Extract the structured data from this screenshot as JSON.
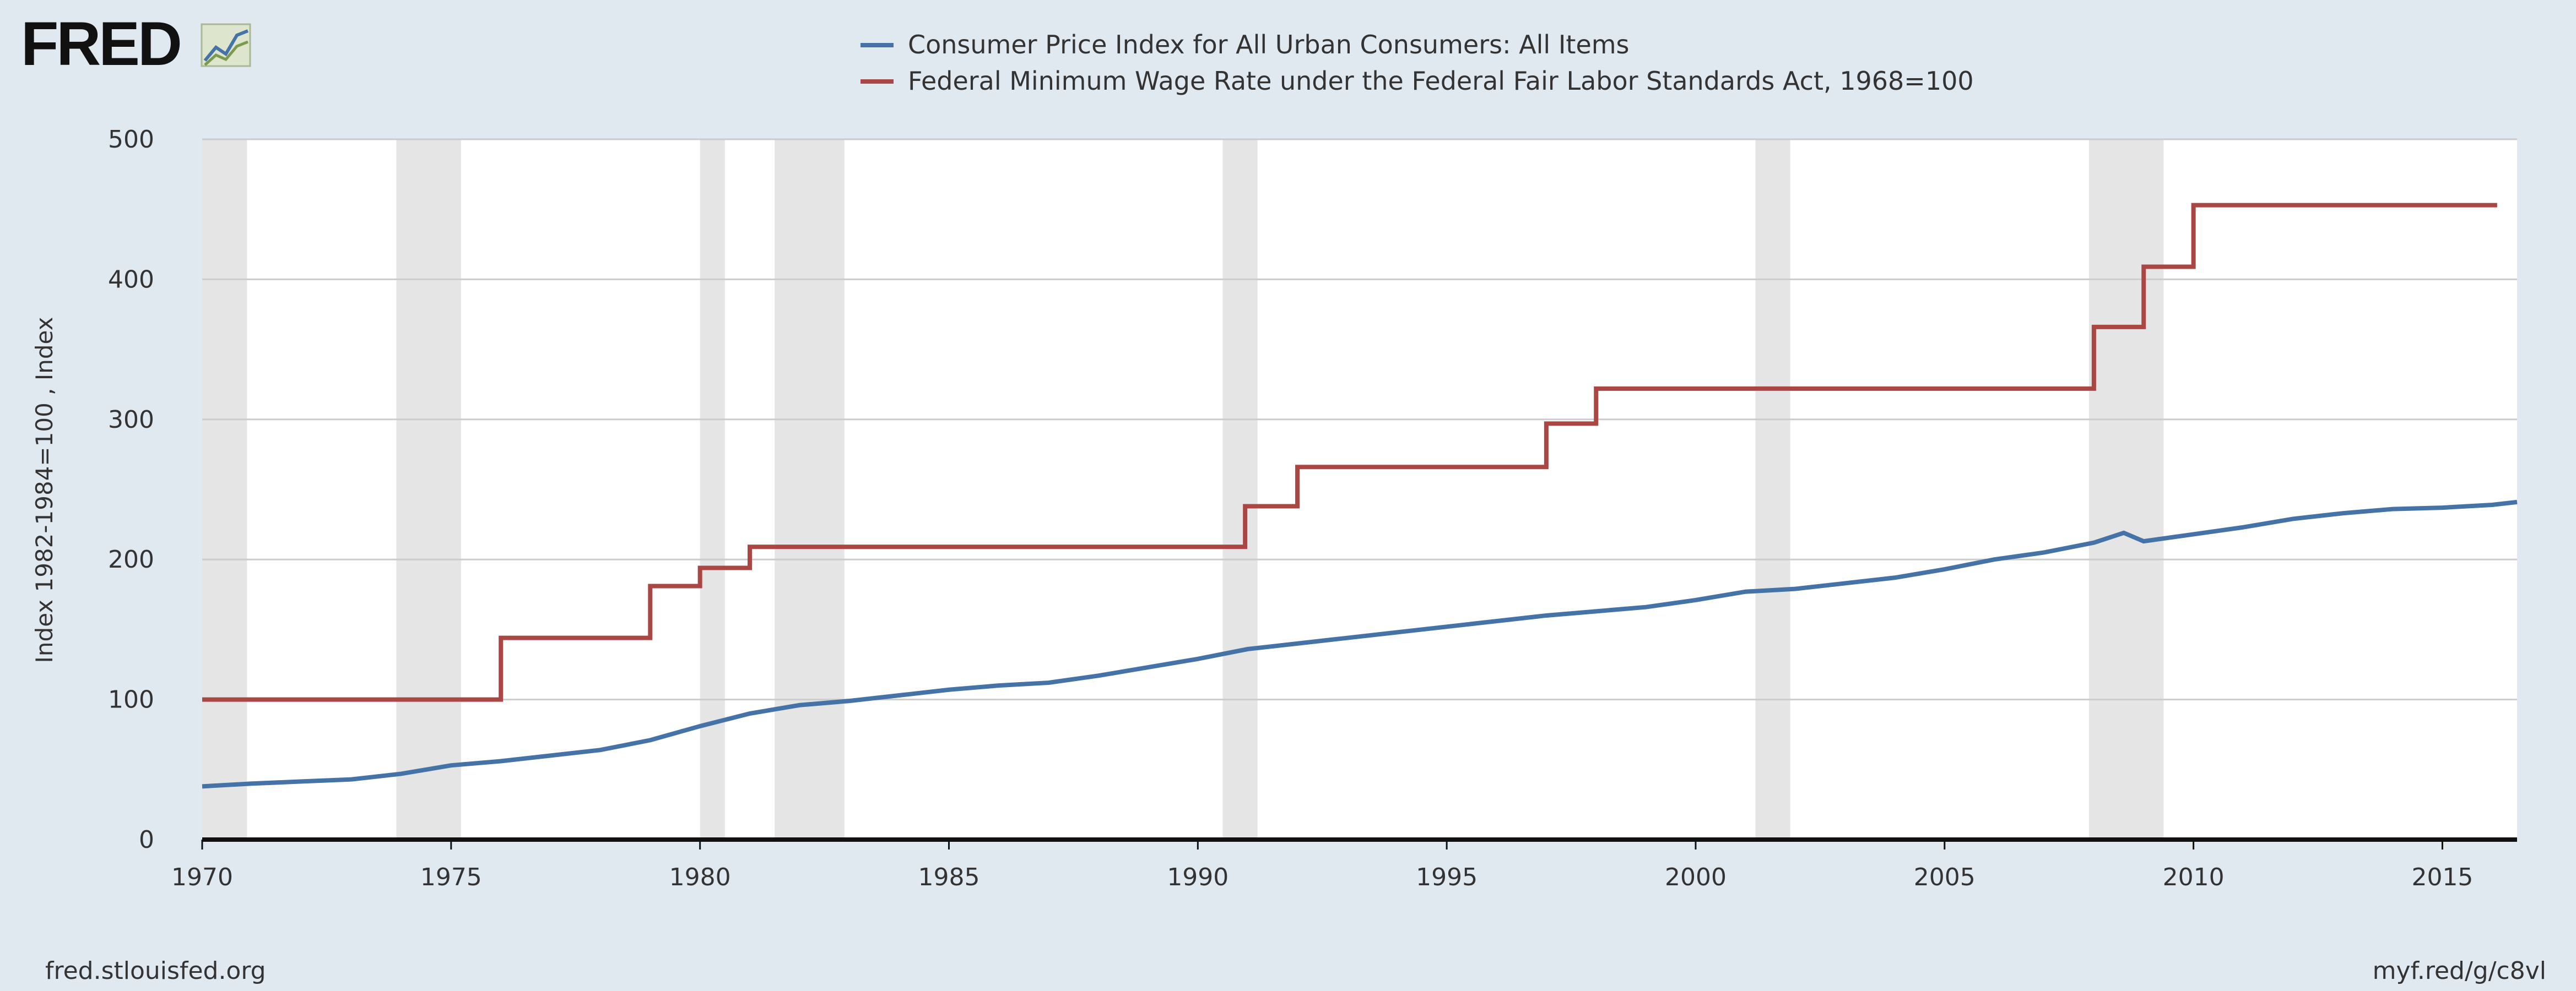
{
  "brand": {
    "logo_text": "FRED",
    "logo_icon": "line-chart-icon"
  },
  "footer": {
    "left": "fred.stlouisfed.org",
    "right": "myf.red/g/c8vl"
  },
  "colors": {
    "background": "#e1e9f0",
    "plot_background": "#ffffff",
    "recession": "#e5e5e5",
    "grid": "#cccccc",
    "series_cpi": "#4572a7",
    "series_wage": "#aa4643"
  },
  "chart_data": {
    "type": "line",
    "title": "",
    "xlabel": "",
    "ylabel": "Index 1982-1984=100 , Index",
    "xlim": [
      1970,
      2016.5
    ],
    "ylim": [
      0,
      500
    ],
    "x_ticks": [
      "1970",
      "1975",
      "1980",
      "1985",
      "1990",
      "1995",
      "2000",
      "2005",
      "2010",
      "2015"
    ],
    "y_ticks": [
      "0",
      "100",
      "200",
      "300",
      "400",
      "500"
    ],
    "grid": true,
    "legend_position": "top-center",
    "recessions": [
      [
        1969.9,
        1970.9
      ],
      [
        1973.9,
        1975.2
      ],
      [
        1980.0,
        1980.5
      ],
      [
        1981.5,
        1982.9
      ],
      [
        1990.5,
        1991.2
      ],
      [
        2001.2,
        2001.9
      ],
      [
        2007.9,
        2009.4
      ]
    ],
    "series": [
      {
        "name": "Consumer Price Index for All Urban Consumers: All Items",
        "step": false,
        "x": [
          1970,
          1971,
          1972,
          1973,
          1974,
          1975,
          1976,
          1977,
          1978,
          1979,
          1980,
          1981,
          1982,
          1983,
          1984,
          1985,
          1986,
          1987,
          1988,
          1989,
          1990,
          1991,
          1992,
          1993,
          1994,
          1995,
          1996,
          1997,
          1998,
          1999,
          2000,
          2001,
          2002,
          2003,
          2004,
          2005,
          2006,
          2007,
          2008,
          2008.6,
          2009,
          2010,
          2011,
          2012,
          2013,
          2014,
          2015,
          2016,
          2016.5
        ],
        "y": [
          38,
          40,
          41.5,
          43,
          47,
          53,
          56,
          60,
          64,
          71,
          81,
          90,
          96,
          99,
          103,
          107,
          110,
          112,
          117,
          123,
          129,
          136,
          140,
          144,
          148,
          152,
          156,
          160,
          163,
          166,
          171,
          177,
          179,
          183,
          187,
          193,
          200,
          205,
          212,
          219,
          213,
          218,
          223,
          229,
          233,
          236,
          237,
          239,
          241
        ]
      },
      {
        "name": "Federal Minimum Wage Rate under the Federal Fair Labor Standards Act, 1968=100",
        "step": true,
        "x": [
          1970,
          1976,
          1979,
          1980,
          1981,
          1990.95,
          1992,
          1997,
          1998,
          2008,
          2009,
          2010,
          2016.1
        ],
        "y": [
          100,
          144,
          181,
          194,
          209,
          238,
          266,
          297,
          322,
          366,
          409,
          453,
          453
        ]
      }
    ]
  }
}
